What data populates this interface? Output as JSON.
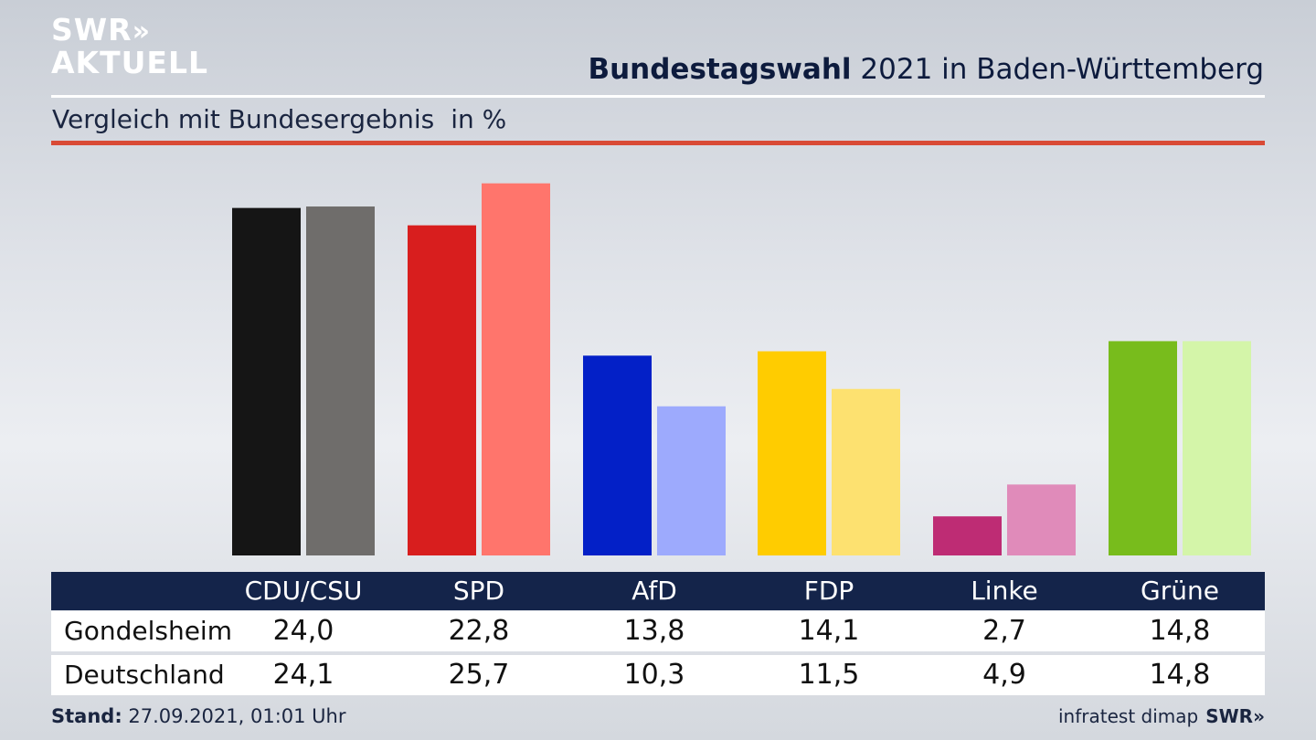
{
  "brand": {
    "line1": "SWR",
    "line1_chevrons": "»",
    "line2": "AKTUELL"
  },
  "header": {
    "title_bold": "Bundestagswahl",
    "title_rest": " 2021 in Baden-Württemberg",
    "subtitle": "Vergleich mit Bundesergebnis",
    "unit": "in %"
  },
  "chart_data": {
    "type": "bar",
    "categories": [
      "CDU/CSU",
      "SPD",
      "AfD",
      "FDP",
      "Linke",
      "Grüne"
    ],
    "series": [
      {
        "name": "Gondelsheim",
        "values": [
          24.0,
          22.8,
          13.8,
          14.1,
          2.7,
          14.8
        ]
      },
      {
        "name": "Deutschland",
        "values": [
          24.1,
          25.7,
          10.3,
          11.5,
          4.9,
          14.8
        ]
      }
    ],
    "colors": {
      "Gondelsheim": [
        "#151515",
        "#d81e1e",
        "#0320c7",
        "#ffcc00",
        "#be2c74",
        "#78bc1c"
      ],
      "Deutschland": [
        "#6f6d6b",
        "#ff756c",
        "#9daafd",
        "#fde170",
        "#e08bba",
        "#d4f5a9"
      ]
    },
    "ylim": [
      0,
      26.5
    ],
    "grid": false
  },
  "table": {
    "row_labels": [
      "Gondelsheim",
      "Deutschland"
    ],
    "display_values": [
      [
        "24,0",
        "22,8",
        "13,8",
        "14,1",
        "2,7",
        "14,8"
      ],
      [
        "24,1",
        "25,7",
        "10,3",
        "11,5",
        "4,9",
        "14,8"
      ]
    ]
  },
  "footer": {
    "stand_label": "Stand:",
    "stand_value": " 27.09.2021, 01:01 Uhr",
    "source": "infratest dimap",
    "source_logo": "SWR»"
  }
}
